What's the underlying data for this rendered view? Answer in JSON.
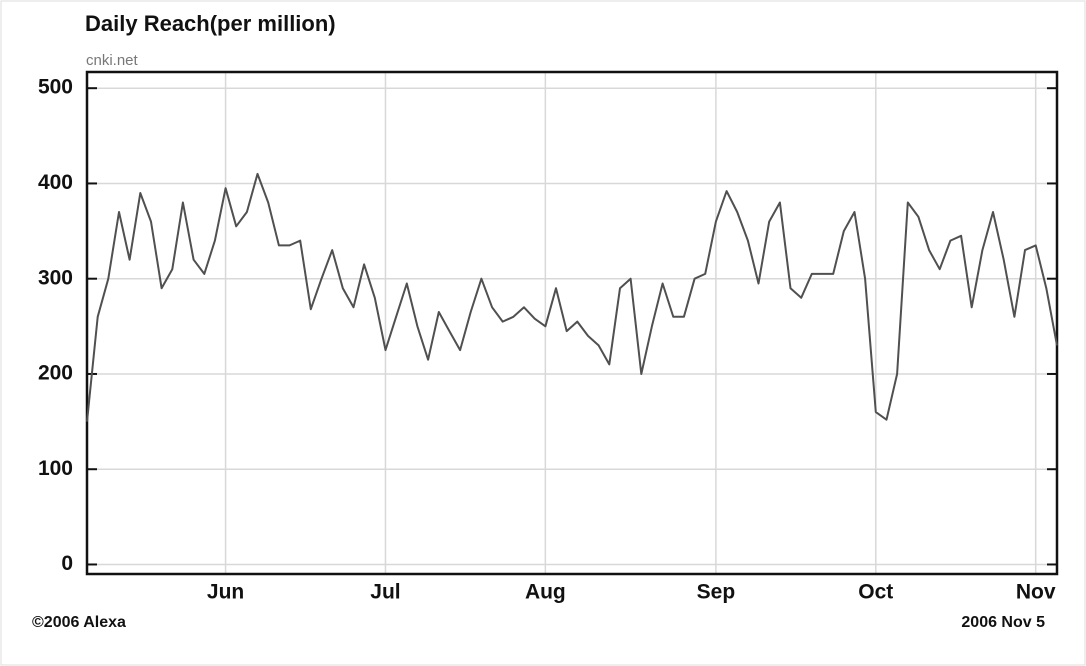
{
  "chart_data": {
    "type": "line",
    "title": "Daily Reach(per million)",
    "subtitle": "cnki.net",
    "footer_left": "©2006 Alexa",
    "footer_right": "2006 Nov 5",
    "categories": [
      null,
      null,
      null,
      null,
      null,
      null,
      null,
      null,
      null,
      null,
      null,
      null,
      null,
      "Jun",
      null,
      null,
      null,
      null,
      null,
      null,
      null,
      null,
      null,
      null,
      null,
      null,
      null,
      null,
      "Jul",
      null,
      null,
      null,
      null,
      null,
      null,
      null,
      null,
      null,
      null,
      null,
      null,
      null,
      null,
      "Aug",
      null,
      null,
      null,
      null,
      null,
      null,
      null,
      null,
      null,
      null,
      null,
      null,
      null,
      null,
      null,
      "Sep",
      null,
      null,
      null,
      null,
      null,
      null,
      null,
      null,
      null,
      null,
      null,
      null,
      null,
      null,
      "Oct",
      null,
      null,
      null,
      null,
      null,
      null,
      null,
      null,
      null,
      null,
      null,
      null,
      null,
      null,
      "Nov",
      null,
      null
    ],
    "series": [
      {
        "name": "cnki.net",
        "color": "#505050",
        "values": [
          150,
          260,
          300,
          370,
          320,
          390,
          360,
          290,
          310,
          380,
          320,
          305,
          340,
          395,
          355,
          370,
          410,
          380,
          335,
          335,
          340,
          268,
          300,
          330,
          290,
          270,
          315,
          280,
          225,
          260,
          295,
          250,
          215,
          265,
          245,
          225,
          265,
          300,
          270,
          255,
          260,
          270,
          258,
          250,
          290,
          245,
          255,
          240,
          230,
          210,
          290,
          300,
          200,
          250,
          295,
          260,
          260,
          300,
          305,
          360,
          392,
          370,
          340,
          295,
          360,
          380,
          290,
          280,
          305,
          305,
          305,
          350,
          370,
          300,
          160,
          152,
          200,
          380,
          365,
          330,
          310,
          340,
          345,
          270,
          330,
          370,
          320,
          260,
          330,
          335,
          290,
          230
        ]
      }
    ],
    "ylim": [
      -10,
      517
    ],
    "yticks": [
      0,
      100,
      200,
      300,
      400,
      500
    ],
    "grid": true
  }
}
